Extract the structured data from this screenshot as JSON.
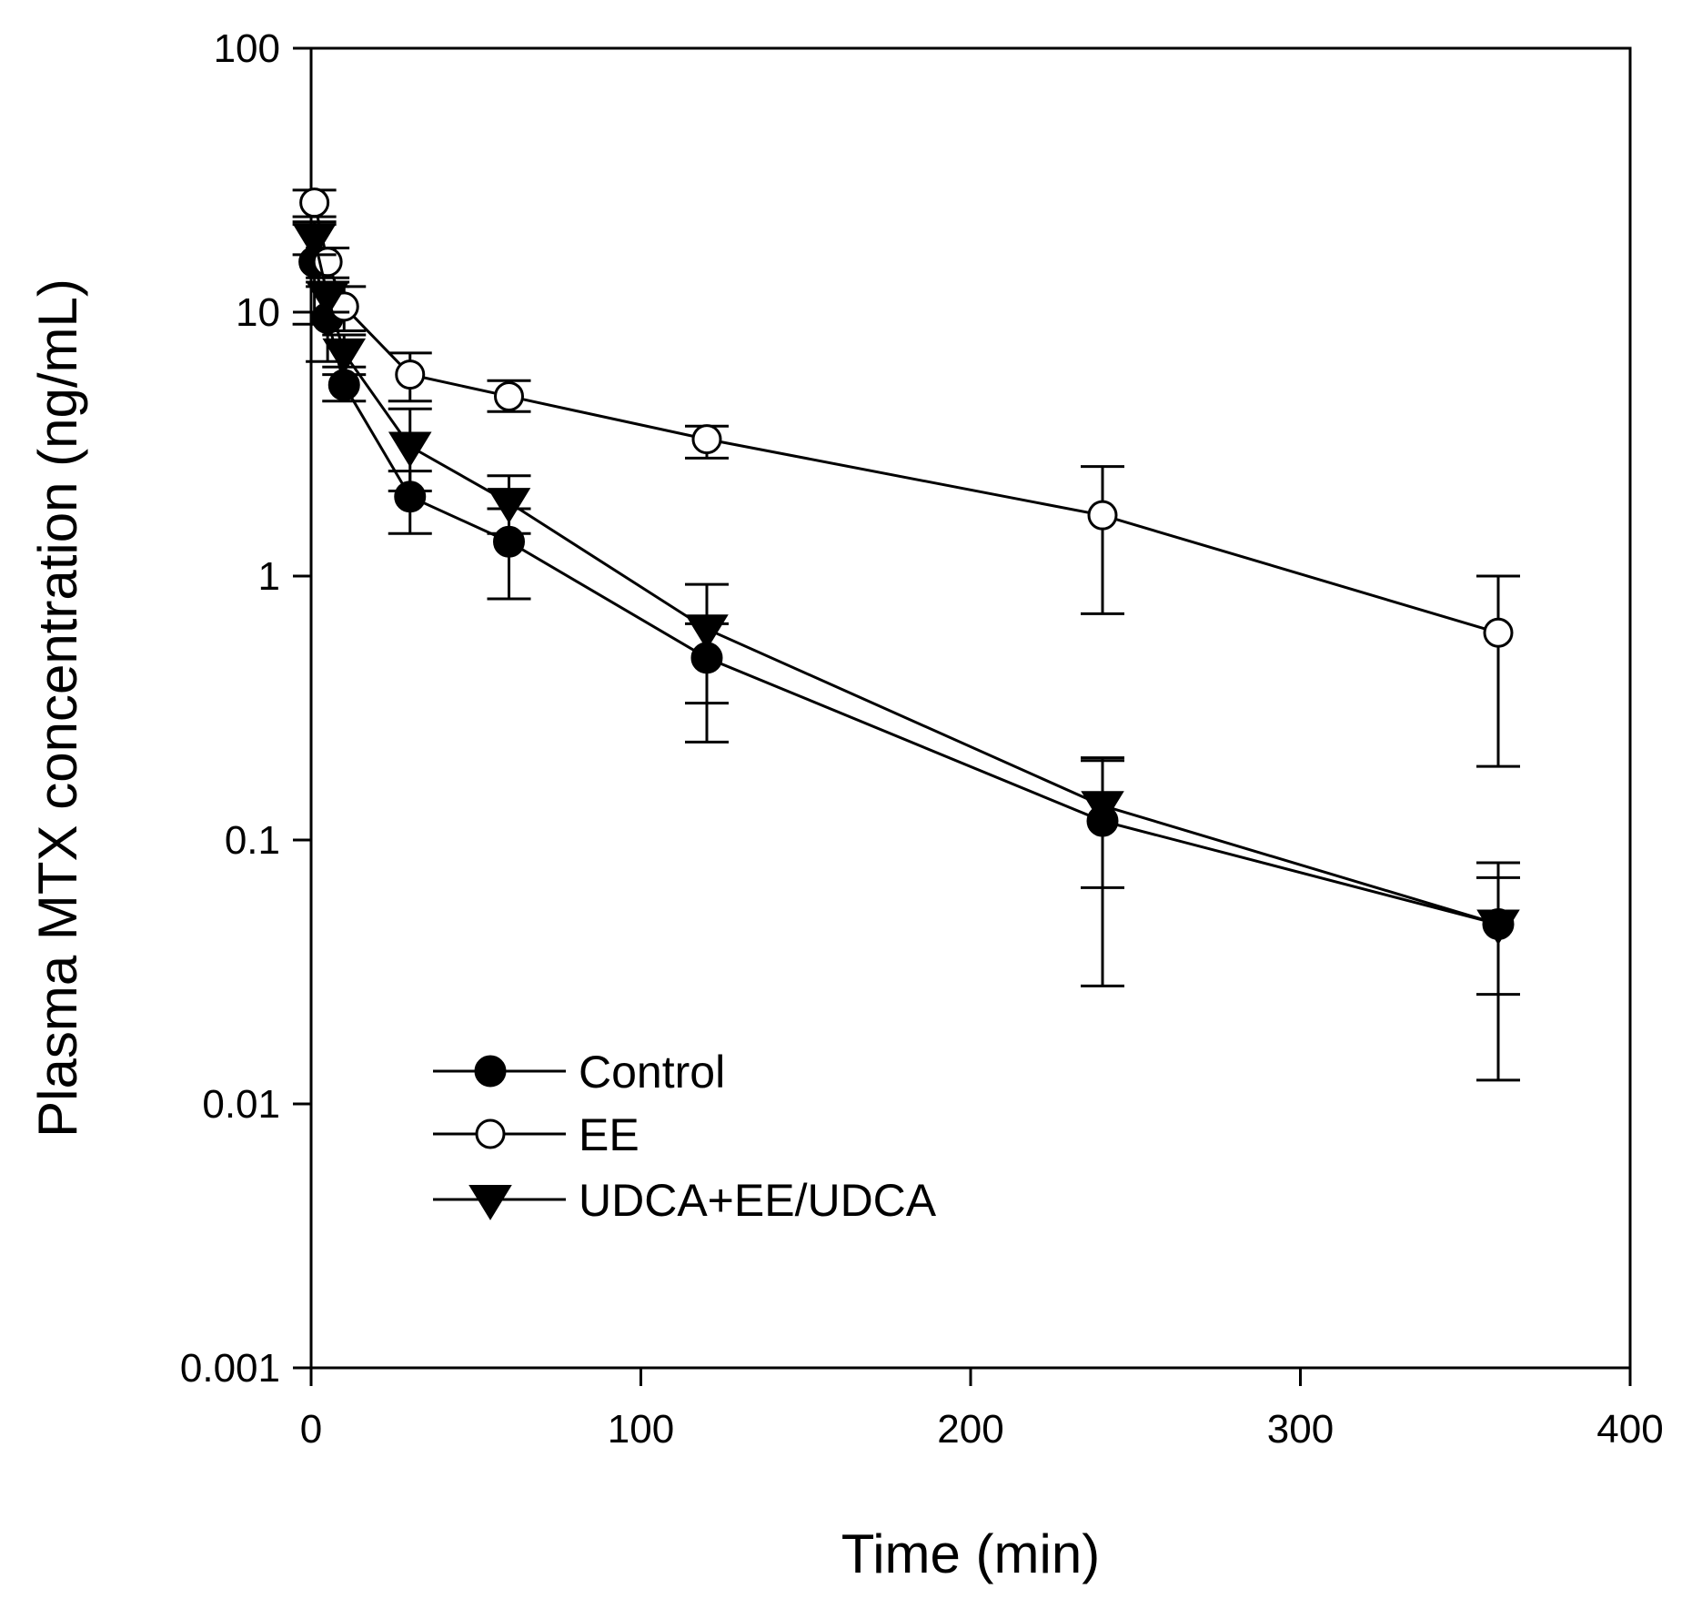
{
  "chart_data": {
    "type": "line",
    "xlabel": "Time (min)",
    "ylabel": "Plasma MTX concentration (ng/mL)",
    "xlim": [
      0,
      400
    ],
    "ylim": [
      0.001,
      100
    ],
    "yscale": "log",
    "xticks": [
      0,
      100,
      200,
      300,
      400
    ],
    "xtick_labels": [
      "0",
      "100",
      "200",
      "300",
      "400"
    ],
    "yticks": [
      0.001,
      0.01,
      0.1,
      1,
      10,
      100
    ],
    "ytick_labels": [
      "0.001",
      "0.01",
      "0.1",
      "1",
      "10",
      "100"
    ],
    "grid": false,
    "legend_position": "bottom-left",
    "series": [
      {
        "name": "Control",
        "marker": "filled-circle",
        "x": [
          1,
          5,
          10,
          30,
          60,
          120,
          240,
          360
        ],
        "y": [
          15.5,
          9.5,
          5.3,
          2.0,
          1.35,
          0.49,
          0.118,
          0.048
        ],
        "yerr_upper": [
          22.0,
          12.5,
          6.2,
          2.5,
          1.8,
          0.66,
          0.2,
          0.072
        ],
        "yerr_lower": [
          9.0,
          6.5,
          4.6,
          1.45,
          0.82,
          0.235,
          0.028,
          0.0123
        ]
      },
      {
        "name": "EE",
        "marker": "open-circle",
        "x": [
          1,
          5,
          10,
          30,
          60,
          120,
          240,
          360
        ],
        "y": [
          26.0,
          15.5,
          10.5,
          5.8,
          4.8,
          3.3,
          1.7,
          0.61
        ],
        "yerr_upper": [
          29.0,
          17.5,
          12.5,
          7.0,
          5.5,
          3.7,
          2.6,
          1.0
        ],
        "yerr_lower": [
          23.0,
          13.5,
          8.5,
          4.6,
          4.2,
          2.8,
          0.72,
          0.19
        ]
      },
      {
        "name": "UDCA+EE/UDCA",
        "marker": "filled-triangle-down",
        "x": [
          1,
          5,
          10,
          30,
          60,
          120,
          240,
          360
        ],
        "y": [
          19.0,
          11.5,
          7.0,
          3.1,
          1.9,
          0.63,
          0.135,
          0.048
        ],
        "yerr_upper": [
          21.5,
          13.0,
          8.2,
          4.3,
          2.4,
          0.93,
          0.066,
          0.082
        ],
        "yerr_lower": [
          16.5,
          10.0,
          5.8,
          2.1,
          1.45,
          0.33,
          0.205,
          0.026
        ]
      }
    ]
  }
}
